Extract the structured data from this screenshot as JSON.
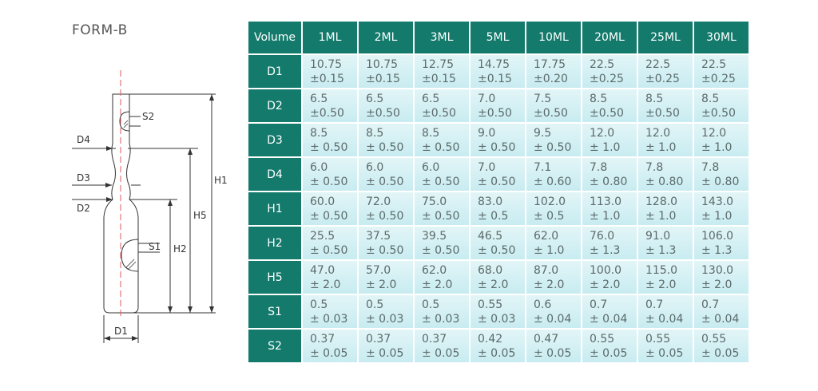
{
  "form_title": "FORM-B",
  "diagram": {
    "labels": {
      "d1": "D1",
      "d2": "D2",
      "d3": "D3",
      "d4": "D4",
      "s1": "S1",
      "s2": "S2",
      "h1": "H1",
      "h2": "H2",
      "h5": "H5"
    }
  },
  "table": {
    "corner": "Volume",
    "columns": [
      "1ML",
      "2ML",
      "3ML",
      "5ML",
      "10ML",
      "20ML",
      "25ML",
      "30ML"
    ],
    "rows": [
      {
        "label": "D1",
        "cells": [
          {
            "v": "10.75",
            "t": "±0.15"
          },
          {
            "v": "10.75",
            "t": "±0.15"
          },
          {
            "v": "12.75",
            "t": "±0.15"
          },
          {
            "v": "14.75",
            "t": "±0.15"
          },
          {
            "v": "17.75",
            "t": "±0.20"
          },
          {
            "v": "22.5",
            "t": "±0.25"
          },
          {
            "v": "22.5",
            "t": "±0.25"
          },
          {
            "v": "22.5",
            "t": "±0.25"
          }
        ]
      },
      {
        "label": "D2",
        "cells": [
          {
            "v": "6.5",
            "t": "±0.50"
          },
          {
            "v": "6.5",
            "t": "±0.50"
          },
          {
            "v": "6.5",
            "t": "±0.50"
          },
          {
            "v": "7.0",
            "t": "±0.50"
          },
          {
            "v": "7.5",
            "t": "±0.50"
          },
          {
            "v": "8.5",
            "t": "±0.50"
          },
          {
            "v": "8.5",
            "t": "±0.50"
          },
          {
            "v": "8.5",
            "t": "±0.50"
          }
        ]
      },
      {
        "label": "D3",
        "cells": [
          {
            "v": "8.5",
            "t": "± 0.50"
          },
          {
            "v": "8.5",
            "t": "± 0.50"
          },
          {
            "v": "8.5",
            "t": "± 0.50"
          },
          {
            "v": "9.0",
            "t": "± 0.50"
          },
          {
            "v": "9.5",
            "t": "± 0.50"
          },
          {
            "v": "12.0",
            "t": "± 1.0"
          },
          {
            "v": "12.0",
            "t": "± 1.0"
          },
          {
            "v": "12.0",
            "t": "± 1.0"
          }
        ]
      },
      {
        "label": "D4",
        "cells": [
          {
            "v": "6.0",
            "t": "± 0.50"
          },
          {
            "v": "6.0",
            "t": "± 0.50"
          },
          {
            "v": "6.0",
            "t": "± 0.50"
          },
          {
            "v": "7.0",
            "t": "± 0.50"
          },
          {
            "v": "7.1",
            "t": "± 0.60"
          },
          {
            "v": "7.8",
            "t": "± 0.80"
          },
          {
            "v": "7.8",
            "t": "± 0.80"
          },
          {
            "v": "7.8",
            "t": "± 0.80"
          }
        ]
      },
      {
        "label": "H1",
        "cells": [
          {
            "v": "60.0",
            "t": "± 0.50"
          },
          {
            "v": "72.0",
            "t": "± 0.50"
          },
          {
            "v": "75.0",
            "t": "± 0.50"
          },
          {
            "v": "83.0",
            "t": "± 0.5"
          },
          {
            "v": "102.0",
            "t": "± 0.5"
          },
          {
            "v": "113.0",
            "t": "± 1.0"
          },
          {
            "v": "128.0",
            "t": "± 1.0"
          },
          {
            "v": "143.0",
            "t": "± 1.0"
          }
        ]
      },
      {
        "label": "H2",
        "cells": [
          {
            "v": "25.5",
            "t": "± 0.50"
          },
          {
            "v": "37.5",
            "t": "± 0.50"
          },
          {
            "v": "39.5",
            "t": "± 0.50"
          },
          {
            "v": "46.5",
            "t": "± 0.50"
          },
          {
            "v": "62.0",
            "t": "± 1.0"
          },
          {
            "v": "76.0",
            "t": "± 1.3"
          },
          {
            "v": "91.0",
            "t": "± 1.3"
          },
          {
            "v": "106.0",
            "t": "± 1.3"
          }
        ]
      },
      {
        "label": "H5",
        "cells": [
          {
            "v": "47.0",
            "t": "± 2.0"
          },
          {
            "v": "57.0",
            "t": "± 2.0"
          },
          {
            "v": "62.0",
            "t": "± 2.0"
          },
          {
            "v": "68.0",
            "t": "± 2.0"
          },
          {
            "v": "87.0",
            "t": "± 2.0"
          },
          {
            "v": "100.0",
            "t": "± 2.0"
          },
          {
            "v": "115.0",
            "t": "± 2.0"
          },
          {
            "v": "130.0",
            "t": "± 2.0"
          }
        ]
      },
      {
        "label": "S1",
        "cells": [
          {
            "v": "0.5",
            "t": "± 0.03"
          },
          {
            "v": "0.5",
            "t": "± 0.03"
          },
          {
            "v": "0.5",
            "t": "± 0.03"
          },
          {
            "v": "0.55",
            "t": "± 0.03"
          },
          {
            "v": "0.6",
            "t": "± 0.04"
          },
          {
            "v": "0.7",
            "t": "± 0.04"
          },
          {
            "v": "0.7",
            "t": "± 0.04"
          },
          {
            "v": "0.7",
            "t": "± 0.04"
          }
        ]
      },
      {
        "label": "S2",
        "cells": [
          {
            "v": "0.37",
            "t": "± 0.05"
          },
          {
            "v": "0.37",
            "t": "± 0.05"
          },
          {
            "v": "0.37",
            "t": "± 0.05"
          },
          {
            "v": "0.42",
            "t": "± 0.05"
          },
          {
            "v": "0.47",
            "t": "± 0.05"
          },
          {
            "v": "0.55",
            "t": "± 0.05"
          },
          {
            "v": "0.55",
            "t": "± 0.05"
          },
          {
            "v": "0.55",
            "t": "± 0.05"
          }
        ]
      }
    ]
  },
  "colors": {
    "header_bg": "#137a6c",
    "cell_bg": "#d4f0f4",
    "cell_text": "#5c6a6a",
    "centerline": "#e05a5a"
  }
}
